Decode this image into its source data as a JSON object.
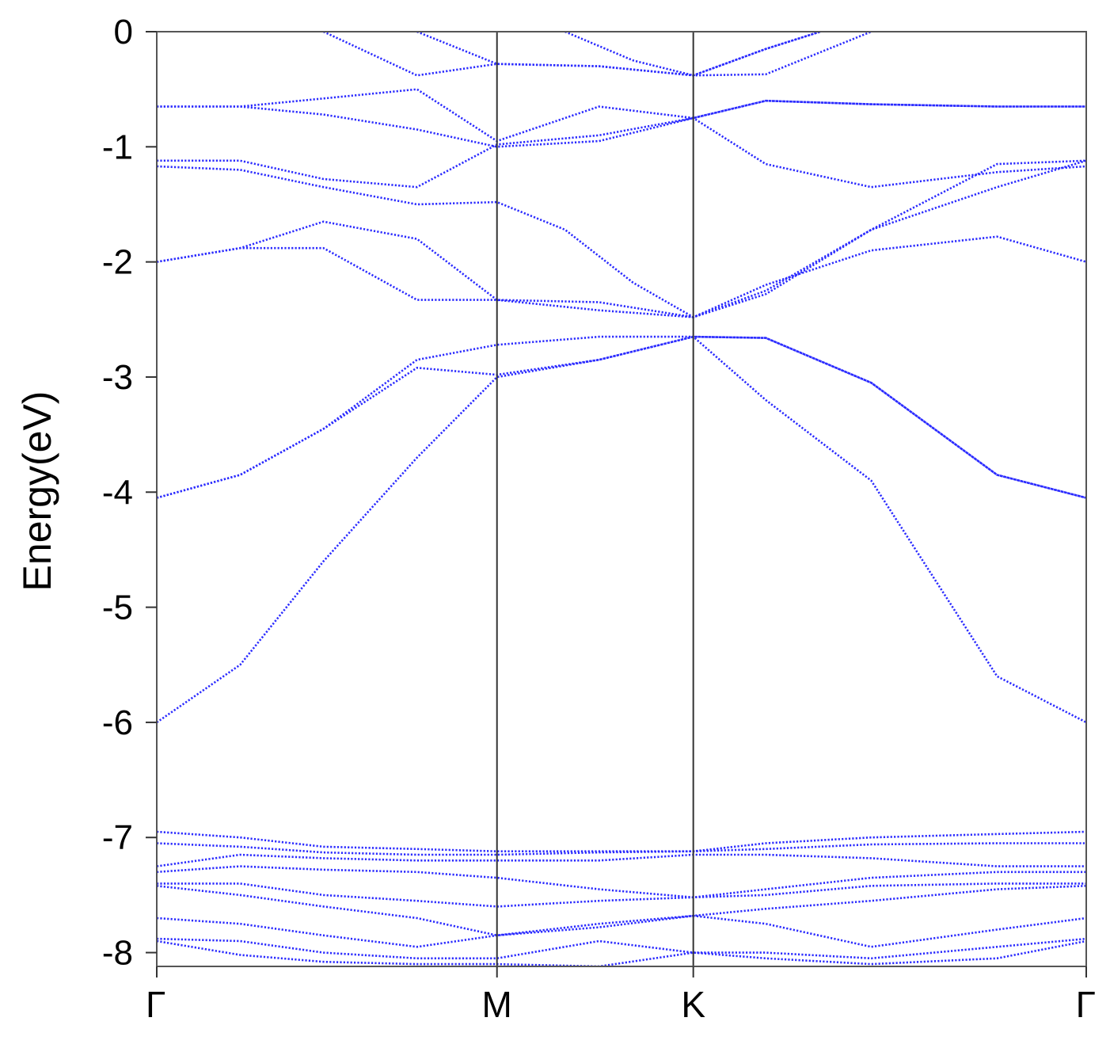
{
  "chart_data": {
    "type": "line",
    "ylabel": "Energy(eV)",
    "xlabel": "",
    "ylim": [
      -8.12,
      0
    ],
    "yticks": [
      0,
      -1,
      -2,
      -3,
      -4,
      -5,
      -6,
      -7,
      -8
    ],
    "ytick_labels": [
      "0",
      "-1",
      "-2",
      "-3",
      "-4",
      "-5",
      "-6",
      "-7",
      "-8"
    ],
    "kpoints": [
      {
        "label": "Γ",
        "x": 0
      },
      {
        "label": "M",
        "x": 1
      },
      {
        "label": "K",
        "x": 1.577
      },
      {
        "label": "Γ",
        "x": 2.732
      }
    ],
    "xlim": [
      0,
      2.732
    ],
    "line_style": "dotted",
    "line_color": "#2b2bff",
    "grid": false,
    "series": [
      {
        "points": [
          [
            0,
            -6.0
          ],
          [
            0.245,
            -5.5
          ],
          [
            0.49,
            -4.6
          ],
          [
            0.765,
            -3.7
          ],
          [
            1.0,
            -3.0
          ],
          [
            1.3,
            -2.85
          ],
          [
            1.577,
            -2.65
          ],
          [
            1.79,
            -3.2
          ],
          [
            2.1,
            -3.9
          ],
          [
            2.47,
            -5.6
          ],
          [
            2.732,
            -6.0
          ]
        ]
      },
      {
        "points": [
          [
            0,
            -4.05
          ],
          [
            0.245,
            -3.85
          ],
          [
            0.49,
            -3.45
          ],
          [
            0.765,
            -2.85
          ],
          [
            1.0,
            -2.72
          ],
          [
            1.3,
            -2.65
          ],
          [
            1.577,
            -2.65
          ],
          [
            1.79,
            -2.66
          ],
          [
            2.1,
            -3.05
          ],
          [
            2.47,
            -3.85
          ],
          [
            2.732,
            -4.05
          ]
        ]
      },
      {
        "points": [
          [
            0,
            -4.05
          ],
          [
            0.245,
            -3.85
          ],
          [
            0.49,
            -3.45
          ],
          [
            0.765,
            -2.92
          ],
          [
            1.0,
            -2.98
          ],
          [
            1.3,
            -2.85
          ],
          [
            1.577,
            -2.65
          ],
          [
            1.79,
            -2.66
          ],
          [
            2.1,
            -3.05
          ],
          [
            2.47,
            -3.85
          ],
          [
            2.732,
            -4.05
          ]
        ]
      },
      {
        "points": [
          [
            0,
            -2.0
          ],
          [
            0.245,
            -1.88
          ],
          [
            0.49,
            -1.65
          ],
          [
            0.765,
            -1.8
          ],
          [
            1.0,
            -2.33
          ],
          [
            1.3,
            -2.35
          ],
          [
            1.577,
            -2.48
          ],
          [
            1.79,
            -2.2
          ],
          [
            2.1,
            -1.9
          ],
          [
            2.47,
            -1.78
          ],
          [
            2.732,
            -2.0
          ]
        ]
      },
      {
        "points": [
          [
            0,
            -2.0
          ],
          [
            0.245,
            -1.88
          ],
          [
            0.49,
            -1.88
          ],
          [
            0.765,
            -2.33
          ],
          [
            1.0,
            -2.33
          ],
          [
            1.3,
            -2.42
          ],
          [
            1.577,
            -2.48
          ],
          [
            1.79,
            -2.28
          ],
          [
            2.1,
            -1.72
          ],
          [
            2.47,
            -1.35
          ],
          [
            2.732,
            -1.12
          ]
        ]
      },
      {
        "points": [
          [
            0,
            -1.12
          ],
          [
            0.245,
            -1.12
          ],
          [
            0.49,
            -1.28
          ],
          [
            0.765,
            -1.35
          ],
          [
            1.0,
            -0.98
          ],
          [
            1.3,
            -0.9
          ],
          [
            1.577,
            -0.75
          ],
          [
            1.79,
            -1.15
          ],
          [
            2.1,
            -1.35
          ],
          [
            2.47,
            -1.22
          ],
          [
            2.732,
            -1.17
          ]
        ]
      },
      {
        "points": [
          [
            0,
            -1.17
          ],
          [
            0.245,
            -1.2
          ],
          [
            0.49,
            -1.35
          ],
          [
            0.765,
            -1.5
          ],
          [
            1.0,
            -1.48
          ],
          [
            1.2,
            -1.72
          ],
          [
            1.4,
            -2.18
          ],
          [
            1.577,
            -2.48
          ],
          [
            1.79,
            -2.25
          ],
          [
            2.1,
            -1.72
          ],
          [
            2.47,
            -1.15
          ],
          [
            2.732,
            -1.12
          ]
        ]
      },
      {
        "points": [
          [
            0,
            -0.65
          ],
          [
            0.245,
            -0.65
          ],
          [
            0.49,
            -0.58
          ],
          [
            0.765,
            -0.5
          ],
          [
            1.0,
            -0.95
          ],
          [
            1.3,
            -0.65
          ],
          [
            1.577,
            -0.75
          ],
          [
            1.79,
            -0.6
          ],
          [
            2.1,
            -0.63
          ],
          [
            2.47,
            -0.65
          ],
          [
            2.732,
            -0.65
          ]
        ]
      },
      {
        "points": [
          [
            0,
            -0.65
          ],
          [
            0.245,
            -0.65
          ],
          [
            0.49,
            -0.72
          ],
          [
            0.765,
            -0.85
          ],
          [
            1.0,
            -1.0
          ],
          [
            1.3,
            -0.95
          ],
          [
            1.577,
            -0.75
          ],
          [
            1.79,
            -0.6
          ],
          [
            2.1,
            -0.63
          ],
          [
            2.47,
            -0.65
          ],
          [
            2.732,
            -0.65
          ]
        ]
      },
      {
        "points": [
          [
            0.49,
            0.0
          ],
          [
            0.765,
            -0.38
          ],
          [
            1.0,
            -0.28
          ],
          [
            1.3,
            -0.3
          ],
          [
            1.577,
            -0.38
          ],
          [
            1.79,
            -0.37
          ],
          [
            2.1,
            0.0
          ]
        ]
      },
      {
        "points": [
          [
            0.765,
            0.0
          ],
          [
            1.0,
            -0.28
          ],
          [
            1.3,
            -0.3
          ],
          [
            1.577,
            -0.38
          ],
          [
            1.79,
            -0.15
          ],
          [
            1.95,
            0.0
          ]
        ]
      },
      {
        "points": [
          [
            1.2,
            0.0
          ],
          [
            1.4,
            -0.25
          ],
          [
            1.577,
            -0.38
          ],
          [
            1.79,
            -0.15
          ],
          [
            1.95,
            0.0
          ]
        ]
      },
      {
        "points": [
          [
            0,
            -6.95
          ],
          [
            0.245,
            -7.0
          ],
          [
            0.49,
            -7.08
          ],
          [
            0.765,
            -7.1
          ],
          [
            1.0,
            -7.12
          ],
          [
            1.3,
            -7.12
          ],
          [
            1.577,
            -7.12
          ],
          [
            1.79,
            -7.05
          ],
          [
            2.1,
            -7.0
          ],
          [
            2.47,
            -6.97
          ],
          [
            2.732,
            -6.95
          ]
        ]
      },
      {
        "points": [
          [
            0,
            -7.05
          ],
          [
            0.245,
            -7.08
          ],
          [
            0.49,
            -7.13
          ],
          [
            0.765,
            -7.15
          ],
          [
            1.0,
            -7.15
          ],
          [
            1.3,
            -7.13
          ],
          [
            1.577,
            -7.12
          ],
          [
            1.79,
            -7.1
          ],
          [
            2.1,
            -7.06
          ],
          [
            2.47,
            -7.05
          ],
          [
            2.732,
            -7.05
          ]
        ]
      },
      {
        "points": [
          [
            0,
            -7.25
          ],
          [
            0.245,
            -7.15
          ],
          [
            0.49,
            -7.18
          ],
          [
            0.765,
            -7.2
          ],
          [
            1.0,
            -7.2
          ],
          [
            1.3,
            -7.2
          ],
          [
            1.577,
            -7.15
          ],
          [
            1.79,
            -7.15
          ],
          [
            2.1,
            -7.18
          ],
          [
            2.47,
            -7.25
          ],
          [
            2.732,
            -7.25
          ]
        ]
      },
      {
        "points": [
          [
            0,
            -7.3
          ],
          [
            0.245,
            -7.25
          ],
          [
            0.49,
            -7.28
          ],
          [
            0.765,
            -7.3
          ],
          [
            1.0,
            -7.35
          ],
          [
            1.3,
            -7.45
          ],
          [
            1.577,
            -7.52
          ],
          [
            1.79,
            -7.45
          ],
          [
            2.1,
            -7.35
          ],
          [
            2.47,
            -7.3
          ],
          [
            2.732,
            -7.3
          ]
        ]
      },
      {
        "points": [
          [
            0,
            -7.4
          ],
          [
            0.245,
            -7.4
          ],
          [
            0.49,
            -7.5
          ],
          [
            0.765,
            -7.55
          ],
          [
            1.0,
            -7.6
          ],
          [
            1.3,
            -7.55
          ],
          [
            1.577,
            -7.52
          ],
          [
            1.79,
            -7.5
          ],
          [
            2.1,
            -7.42
          ],
          [
            2.47,
            -7.4
          ],
          [
            2.732,
            -7.4
          ]
        ]
      },
      {
        "points": [
          [
            0,
            -7.42
          ],
          [
            0.245,
            -7.5
          ],
          [
            0.49,
            -7.6
          ],
          [
            0.765,
            -7.7
          ],
          [
            1.0,
            -7.85
          ],
          [
            1.3,
            -7.75
          ],
          [
            1.577,
            -7.68
          ],
          [
            1.79,
            -7.62
          ],
          [
            2.1,
            -7.55
          ],
          [
            2.47,
            -7.45
          ],
          [
            2.732,
            -7.42
          ]
        ]
      },
      {
        "points": [
          [
            0,
            -7.7
          ],
          [
            0.245,
            -7.75
          ],
          [
            0.49,
            -7.85
          ],
          [
            0.765,
            -7.95
          ],
          [
            1.0,
            -7.85
          ],
          [
            1.3,
            -7.78
          ],
          [
            1.577,
            -7.68
          ],
          [
            1.79,
            -7.75
          ],
          [
            2.1,
            -7.95
          ],
          [
            2.47,
            -7.8
          ],
          [
            2.732,
            -7.7
          ]
        ]
      },
      {
        "points": [
          [
            0,
            -7.88
          ],
          [
            0.245,
            -7.9
          ],
          [
            0.49,
            -8.0
          ],
          [
            0.765,
            -8.05
          ],
          [
            1.0,
            -8.05
          ],
          [
            1.3,
            -7.9
          ],
          [
            1.577,
            -8.0
          ],
          [
            1.79,
            -8.0
          ],
          [
            2.1,
            -8.05
          ],
          [
            2.47,
            -7.95
          ],
          [
            2.732,
            -7.88
          ]
        ]
      },
      {
        "points": [
          [
            0,
            -7.9
          ],
          [
            0.245,
            -8.02
          ],
          [
            0.49,
            -8.08
          ],
          [
            0.765,
            -8.1
          ],
          [
            1.0,
            -8.1
          ],
          [
            1.3,
            -8.12
          ],
          [
            1.577,
            -8.0
          ],
          [
            1.79,
            -8.05
          ],
          [
            2.1,
            -8.1
          ],
          [
            2.47,
            -8.05
          ],
          [
            2.732,
            -7.9
          ]
        ]
      }
    ]
  }
}
